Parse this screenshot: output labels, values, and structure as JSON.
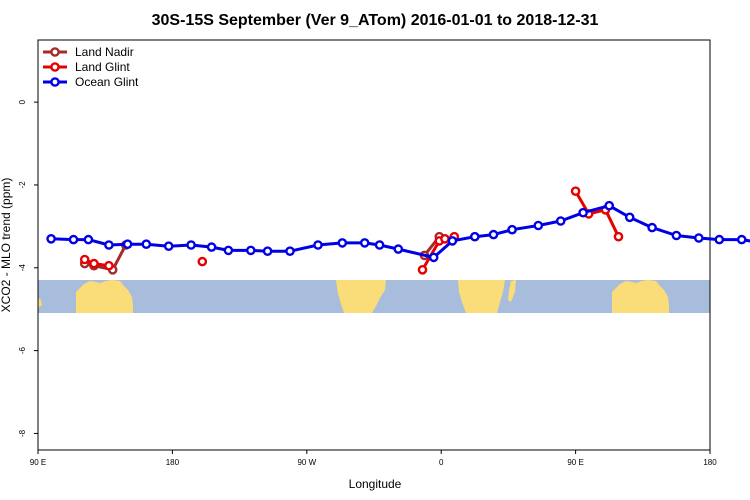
{
  "chart_data": {
    "type": "line",
    "title": "30S-15S September (Ver 9_ATom)   2016-01-01 to 2018-12-31",
    "xlabel": "Longitude",
    "ylabel": "XCO2 - MLO trend (ppm)",
    "xlim": [
      90,
      450
    ],
    "ylim": [
      -8.4,
      1.5
    ],
    "x_ticks": [
      {
        "value": 90,
        "label": "90 E"
      },
      {
        "value": 180,
        "label": "180"
      },
      {
        "value": 270,
        "label": "90 W"
      },
      {
        "value": 360,
        "label": "0"
      },
      {
        "value": 450,
        "label": "90 E"
      },
      {
        "value": 540,
        "label": "180"
      }
    ],
    "y_ticks": [
      {
        "value": 0,
        "label": "0"
      },
      {
        "value": -2,
        "label": "-2"
      },
      {
        "value": -4,
        "label": "-4"
      },
      {
        "value": -6,
        "label": "-6"
      },
      {
        "value": -8,
        "label": "-8"
      }
    ],
    "legend_position": "top-left",
    "map_band": {
      "lat_range": "30S-15S",
      "ocean_color": "#a8bcdc",
      "land_color": "#fadc78"
    },
    "series": [
      {
        "name": "Land Nadir",
        "color": "#a52a2a",
        "segments": [
          [
            {
              "x": 115,
              "y": -3.9
            },
            {
              "x": 120,
              "y": -3.95
            },
            {
              "x": 130,
              "y": -4.05
            },
            {
              "x": 137,
              "y": -3.45
            }
          ],
          [
            {
              "x": 297,
              "y": -3.7
            },
            {
              "x": 305,
              "y": -3.25
            }
          ]
        ]
      },
      {
        "name": "Land Glint",
        "color": "#e60000",
        "segments": [
          [
            {
              "x": 115,
              "y": -3.8
            },
            {
              "x": 120,
              "y": -3.9
            },
            {
              "x": 128,
              "y": -3.95
            }
          ],
          [
            {
              "x": 178,
              "y": -3.85
            }
          ],
          [
            {
              "x": 296,
              "y": -4.05
            },
            {
              "x": 305,
              "y": -3.35
            },
            {
              "x": 308,
              "y": -3.3
            },
            {
              "x": 313,
              "y": -3.25
            }
          ],
          [
            {
              "x": 378,
              "y": -2.15
            },
            {
              "x": 385,
              "y": -2.7
            },
            {
              "x": 394,
              "y": -2.6
            },
            {
              "x": 401,
              "y": -3.25
            }
          ]
        ]
      },
      {
        "name": "Ocean Glint",
        "color": "#0000e6",
        "segments": [
          [
            {
              "x": 97,
              "y": -3.3
            },
            {
              "x": 109,
              "y": -3.32
            },
            {
              "x": 117,
              "y": -3.32
            },
            {
              "x": 128,
              "y": -3.45
            },
            {
              "x": 138,
              "y": -3.43
            },
            {
              "x": 148,
              "y": -3.43
            },
            {
              "x": 160,
              "y": -3.48
            },
            {
              "x": 172,
              "y": -3.45
            },
            {
              "x": 183,
              "y": -3.5
            },
            {
              "x": 192,
              "y": -3.58
            },
            {
              "x": 204,
              "y": -3.58
            },
            {
              "x": 213,
              "y": -3.6
            },
            {
              "x": 225,
              "y": -3.6
            },
            {
              "x": 240,
              "y": -3.45
            },
            {
              "x": 253,
              "y": -3.4
            },
            {
              "x": 265,
              "y": -3.4
            },
            {
              "x": 273,
              "y": -3.45
            },
            {
              "x": 283,
              "y": -3.55
            },
            {
              "x": 302,
              "y": -3.75
            },
            {
              "x": 312,
              "y": -3.35
            },
            {
              "x": 324,
              "y": -3.25
            },
            {
              "x": 334,
              "y": -3.2
            },
            {
              "x": 344,
              "y": -3.08
            },
            {
              "x": 358,
              "y": -2.98
            },
            {
              "x": 370,
              "y": -2.87
            },
            {
              "x": 382,
              "y": -2.67
            },
            {
              "x": 396,
              "y": -2.5
            },
            {
              "x": 407,
              "y": -2.78
            },
            {
              "x": 419,
              "y": -3.03
            },
            {
              "x": 432,
              "y": -3.22
            },
            {
              "x": 444,
              "y": -3.28
            },
            {
              "x": 455,
              "y": -3.32
            },
            {
              "x": 467,
              "y": -3.32
            },
            {
              "x": 478,
              "y": -3.4
            },
            {
              "x": 490,
              "y": -3.43
            },
            {
              "x": 500,
              "y": -3.43
            },
            {
              "x": 512,
              "y": -3.43
            }
          ]
        ]
      }
    ]
  }
}
